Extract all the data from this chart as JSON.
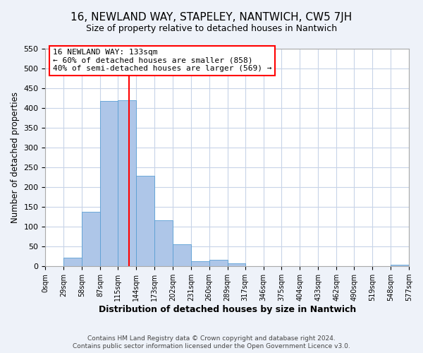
{
  "title": "16, NEWLAND WAY, STAPELEY, NANTWICH, CW5 7JH",
  "subtitle": "Size of property relative to detached houses in Nantwich",
  "xlabel": "Distribution of detached houses by size in Nantwich",
  "ylabel": "Number of detached properties",
  "bin_edges": [
    0,
    29,
    58,
    87,
    115,
    144,
    173,
    202,
    231,
    260,
    289,
    317,
    346,
    375,
    404,
    433,
    462,
    490,
    519,
    548,
    577
  ],
  "bin_labels": [
    "0sqm",
    "29sqm",
    "58sqm",
    "87sqm",
    "115sqm",
    "144sqm",
    "173sqm",
    "202sqm",
    "231sqm",
    "260sqm",
    "289sqm",
    "317sqm",
    "346sqm",
    "375sqm",
    "404sqm",
    "433sqm",
    "462sqm",
    "490sqm",
    "519sqm",
    "548sqm",
    "577sqm"
  ],
  "counts": [
    0,
    22,
    138,
    418,
    420,
    228,
    116,
    55,
    13,
    16,
    7,
    0,
    0,
    0,
    0,
    0,
    0,
    0,
    0,
    4
  ],
  "bar_color": "#aec6e8",
  "bar_edge_color": "#5a9fd4",
  "property_line_x": 133,
  "property_line_color": "red",
  "annotation_title": "16 NEWLAND WAY: 133sqm",
  "annotation_line1": "← 60% of detached houses are smaller (858)",
  "annotation_line2": "40% of semi-detached houses are larger (569) →",
  "annotation_box_color": "white",
  "annotation_box_edge_color": "red",
  "ylim": [
    0,
    550
  ],
  "yticks": [
    0,
    50,
    100,
    150,
    200,
    250,
    300,
    350,
    400,
    450,
    500,
    550
  ],
  "footer1": "Contains HM Land Registry data © Crown copyright and database right 2024.",
  "footer2": "Contains public sector information licensed under the Open Government Licence v3.0.",
  "bg_color": "#eef2f9",
  "plot_bg_color": "#ffffff",
  "grid_color": "#c8d4e8",
  "title_fontsize": 11,
  "subtitle_fontsize": 9
}
